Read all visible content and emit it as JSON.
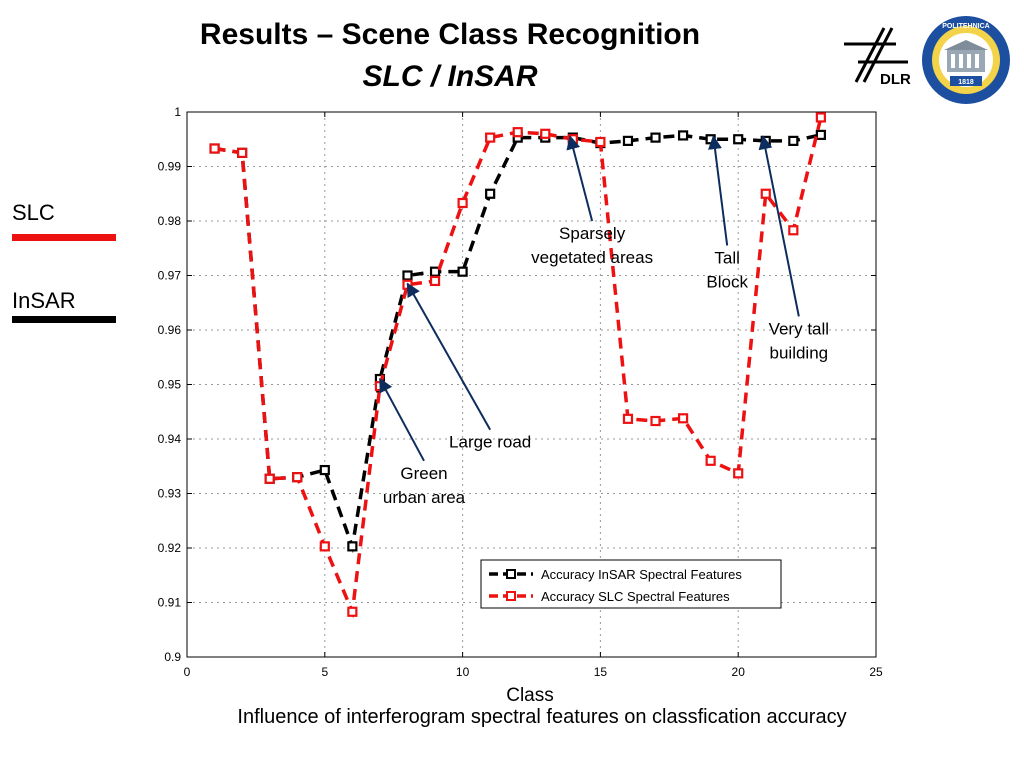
{
  "slide": {
    "title": "Results – Scene Class Recognition",
    "subtitle": "SLC / InSAR",
    "caption": "Influence of interferogram spectral features on classfication accuracy",
    "side_legend": [
      {
        "label": "SLC",
        "color": "#ee1111"
      },
      {
        "label": "InSAR",
        "color": "#000000"
      }
    ],
    "logos": {
      "dlr_text": "DLR",
      "politehnica_text": "POLITEHNICA",
      "politehnica_year": "1818"
    }
  },
  "chart_data": {
    "type": "line",
    "xlabel": "Class",
    "ylabel": "",
    "xlim": [
      0,
      25
    ],
    "ylim": [
      0.9,
      1.0
    ],
    "xticks": [
      0,
      5,
      10,
      15,
      20,
      25
    ],
    "yticks": [
      0.9,
      0.91,
      0.92,
      0.93,
      0.94,
      0.95,
      0.96,
      0.97,
      0.98,
      0.99,
      1
    ],
    "ytick_labels": [
      "0.9",
      "0.91",
      "0.92",
      "0.93",
      "0.94",
      "0.95",
      "0.96",
      "0.97",
      "0.98",
      "0.99",
      "1"
    ],
    "grid": true,
    "legend_position": "lower-right",
    "series": [
      {
        "name": "Accuracy InSAR Spectral Features",
        "color": "#000000",
        "x": [
          1,
          2,
          3,
          4,
          5,
          6,
          7,
          8,
          9,
          10,
          11,
          12,
          13,
          14,
          15,
          16,
          17,
          18,
          19,
          20,
          21,
          22,
          23
        ],
        "y": [
          0.9933,
          0.9925,
          0.9327,
          0.933,
          0.9343,
          0.9203,
          0.951,
          0.97,
          0.9707,
          0.9707,
          0.985,
          0.9953,
          0.9953,
          0.9953,
          0.9943,
          0.9947,
          0.9953,
          0.9957,
          0.995,
          0.995,
          0.9947,
          0.9947,
          0.9958
        ]
      },
      {
        "name": "Accuracy SLC Spectral Features",
        "color": "#ee1111",
        "x": [
          1,
          2,
          3,
          4,
          5,
          6,
          7,
          8,
          9,
          10,
          11,
          12,
          13,
          14,
          15,
          16,
          17,
          18,
          19,
          20,
          21,
          22,
          23
        ],
        "y": [
          0.9933,
          0.9925,
          0.9327,
          0.933,
          0.9203,
          0.9083,
          0.9497,
          0.9683,
          0.969,
          0.9833,
          0.9953,
          0.9963,
          0.996,
          0.995,
          0.9945,
          0.9437,
          0.9433,
          0.9438,
          0.936,
          0.9337,
          0.985,
          0.9783,
          0.999
        ]
      }
    ],
    "annotations": [
      {
        "lines": [
          "Sparsely",
          "vegetated areas"
        ],
        "arrow_to": [
          13.9,
          0.9955
        ],
        "arrow_from": [
          14.7,
          0.98
        ]
      },
      {
        "lines": [
          "Tall",
          "Block"
        ],
        "arrow_to": [
          19.1,
          0.9955
        ],
        "arrow_from": [
          19.6,
          0.9755
        ]
      },
      {
        "lines": [
          "Very tall",
          "building"
        ],
        "arrow_to": [
          20.9,
          0.9955
        ],
        "arrow_from": [
          22.2,
          0.9625
        ]
      },
      {
        "lines": [
          "Large road"
        ],
        "arrow_to": [
          8.0,
          0.9685
        ],
        "arrow_from": [
          11.0,
          0.9417
        ]
      },
      {
        "lines": [
          "Green",
          "urban area"
        ],
        "arrow_to": [
          7.0,
          0.951
        ],
        "arrow_from": [
          8.6,
          0.936
        ]
      }
    ]
  }
}
